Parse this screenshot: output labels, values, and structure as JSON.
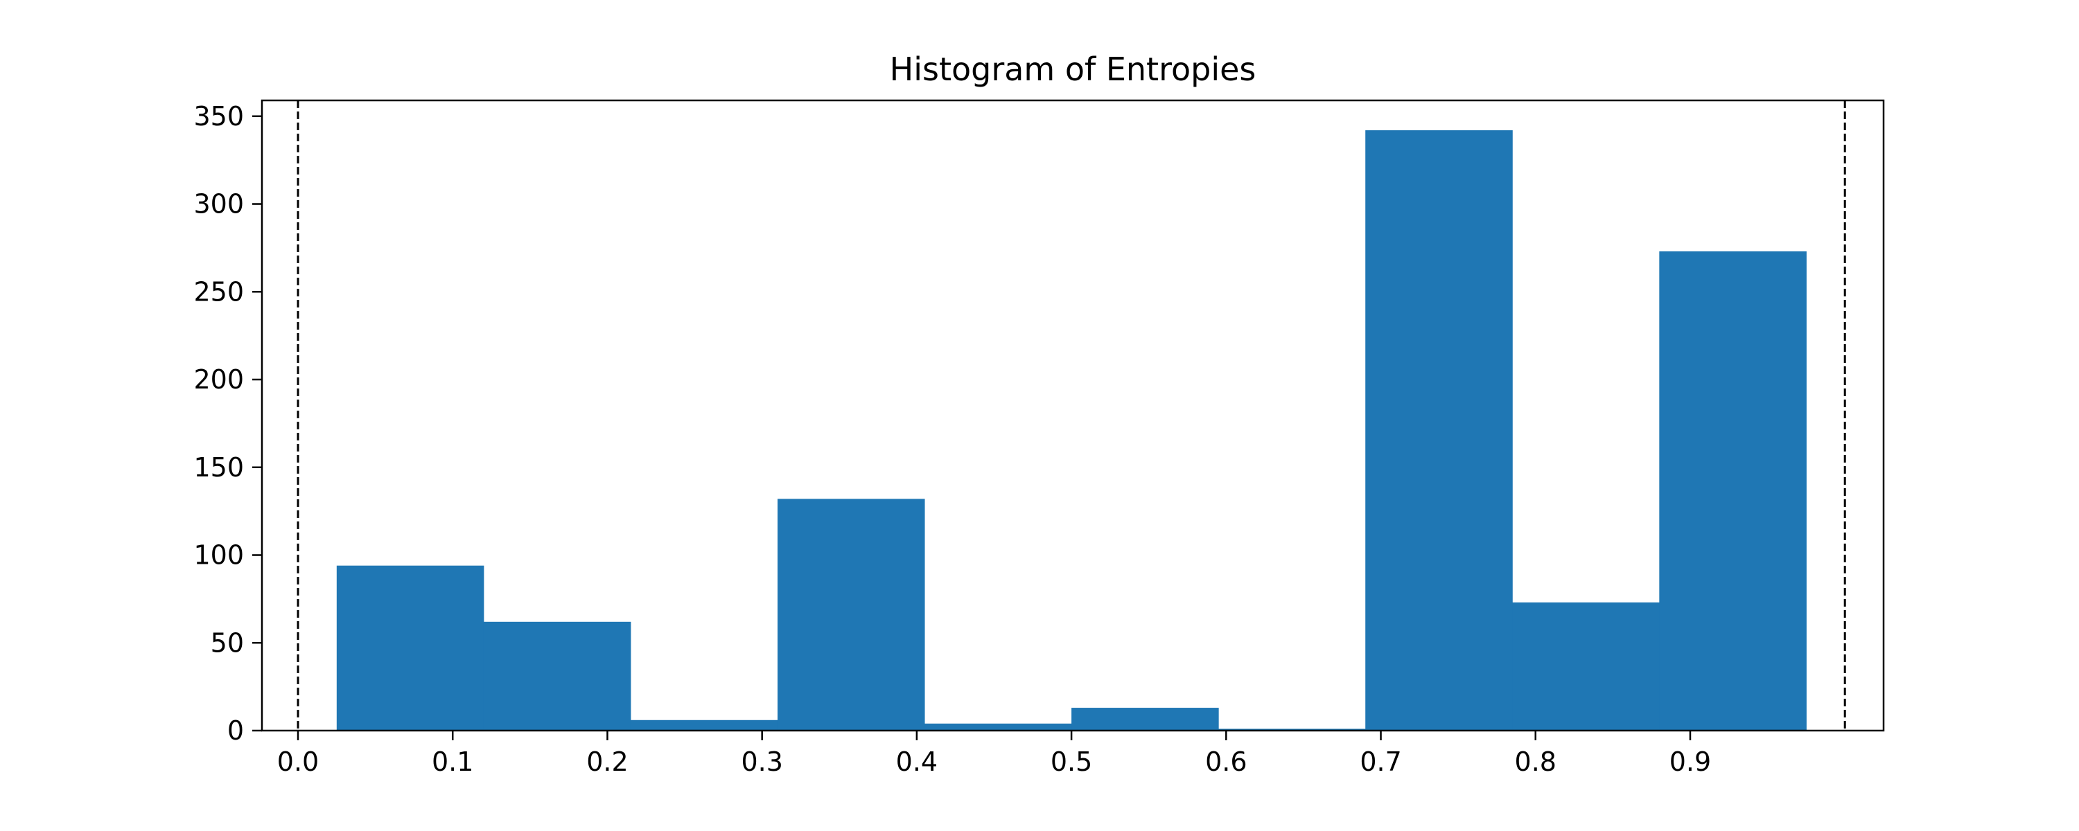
{
  "chart_data": {
    "type": "bar",
    "title": "Histogram of Entropies",
    "xlabel": "",
    "ylabel": "",
    "bin_edges": [
      0.025,
      0.12,
      0.215,
      0.31,
      0.405,
      0.5,
      0.595,
      0.69,
      0.785,
      0.88,
      0.975
    ],
    "values": [
      94,
      62,
      6,
      132,
      4,
      13,
      1,
      342,
      73,
      273
    ],
    "xlim": [
      -0.0233,
      1.025
    ],
    "ylim": [
      0,
      359
    ],
    "xticks": [
      0.0,
      0.1,
      0.2,
      0.3,
      0.4,
      0.5,
      0.6,
      0.7,
      0.8,
      0.9
    ],
    "xtick_labels": [
      "0.0",
      "0.1",
      "0.2",
      "0.3",
      "0.4",
      "0.5",
      "0.6",
      "0.7",
      "0.8",
      "0.9"
    ],
    "yticks": [
      0,
      50,
      100,
      150,
      200,
      250,
      300,
      350
    ],
    "ytick_labels": [
      "0",
      "50",
      "100",
      "150",
      "200",
      "250",
      "300",
      "350"
    ],
    "vlines": [
      0.0,
      1.0
    ],
    "vline_style": "dashed",
    "grid": false,
    "colors": {
      "bar": "#1f77b4",
      "axes": "#000000",
      "vline": "#000000"
    }
  }
}
